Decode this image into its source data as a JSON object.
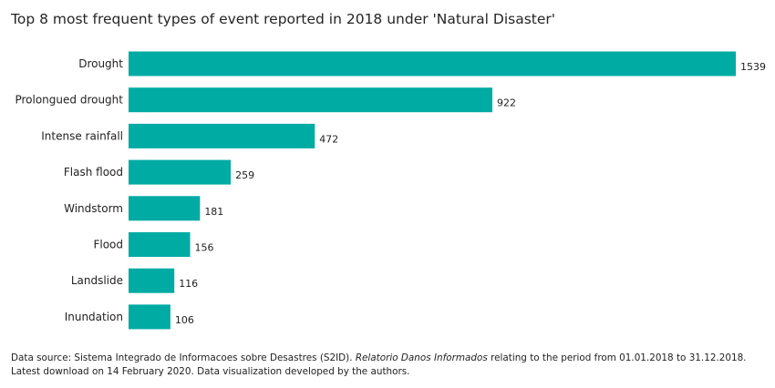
{
  "chart_data": {
    "type": "bar",
    "orientation": "horizontal",
    "title": "Top 8 most frequent types of event reported in 2018 under 'Natural Disaster'",
    "categories": [
      "Drought",
      "Prolongued drought",
      "Intense rainfall",
      "Flash flood",
      "Windstorm",
      "Flood",
      "Landslide",
      "Inundation"
    ],
    "values": [
      1539,
      922,
      472,
      259,
      181,
      156,
      116,
      106
    ],
    "xlabel": "",
    "ylabel": "",
    "xlim": [
      0,
      1539
    ],
    "grid": false,
    "data_labels": true,
    "bar_color": "#00ABA4"
  },
  "footnote": {
    "prefix": "Data source: Sistema Integrado de Informacoes sobre Desastres (S2ID). ",
    "italic": "Relatorio Danos Informados",
    "suffix": " relating to the period from 01.01.2018 to 31.12.2018.  Latest download on 14 February 2020. Data visualization developed by the authors."
  }
}
